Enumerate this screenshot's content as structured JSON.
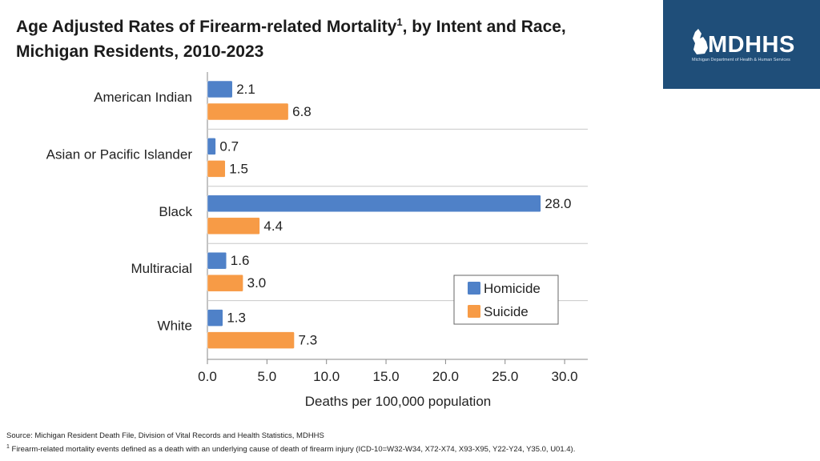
{
  "header": {
    "title_part1": "Age Adjusted Rates of Firearm-related Mortality",
    "title_sup": "1",
    "title_part2": ", by Intent and Race, Michigan Residents, 2010-2023"
  },
  "logo": {
    "text": "MDHHS",
    "subtext": "Michigan Department of Health & Human Services"
  },
  "chart_data": {
    "type": "bar",
    "orientation": "horizontal",
    "title": "Age Adjusted Rates of Firearm-related Mortality, by Intent and Race, Michigan Residents, 2010-2023",
    "categories": [
      "American Indian",
      "Asian or Pacific Islander",
      "Black",
      "Multiracial",
      "White"
    ],
    "series": [
      {
        "name": "Homicide",
        "color": "#4f81c8",
        "values": [
          2.1,
          0.7,
          28.0,
          1.6,
          1.3
        ],
        "labels": [
          "2.1",
          "0.7",
          "28.0",
          "1.6",
          "1.3"
        ]
      },
      {
        "name": "Suicide",
        "color": "#f79b46",
        "values": [
          6.8,
          1.5,
          4.4,
          3.0,
          7.3
        ],
        "labels": [
          "6.8",
          "1.5",
          "4.4",
          "3.0",
          "7.3"
        ]
      }
    ],
    "xlabel": "Deaths per 100,000 population",
    "ylabel": "",
    "xlim": [
      0,
      32
    ],
    "ticks": [
      0,
      5,
      10,
      15,
      20,
      25,
      30
    ],
    "tick_labels": [
      "0.0",
      "5.0",
      "10.0",
      "15.0",
      "20.0",
      "25.0",
      "30.0"
    ],
    "grid": "horizontal separators between categories",
    "legend_position": "bottom-right"
  },
  "footer": {
    "source": "Source: Michigan Resident Death File, Division of Vital Records and Health Statistics, MDHHS",
    "footnote_sup": "1",
    "footnote_text": " Firearm-related mortality events defined as a death with an underlying cause of death of firearm injury (ICD-10=W32-W34, X72-X74, X93-X95, Y22-Y24, Y35.0, U01.4)."
  }
}
